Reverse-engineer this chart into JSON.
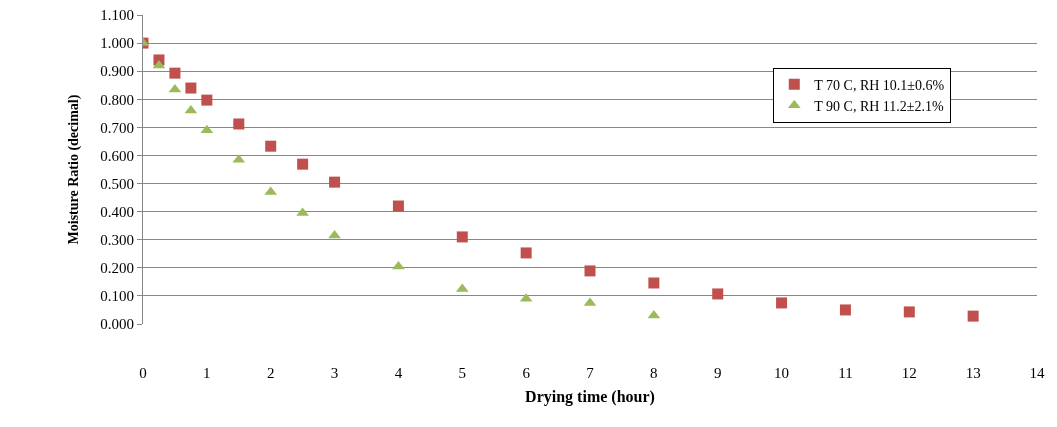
{
  "chart_data": {
    "type": "scatter",
    "xlabel": "Drying time (hour)",
    "ylabel": "Moisture Ratio (decimal)",
    "xlim": [
      0,
      14
    ],
    "xticks": [
      0,
      1,
      2,
      3,
      4,
      5,
      6,
      7,
      8,
      9,
      10,
      11,
      12,
      13,
      14
    ],
    "ylim": [
      0,
      1.1
    ],
    "yticks": [
      {
        "value": 0,
        "label": "0.000"
      },
      {
        "value": 0.1,
        "label": "0.100"
      },
      {
        "value": 0.2,
        "label": "0.200"
      },
      {
        "value": 0.3,
        "label": "0.300"
      },
      {
        "value": 0.4,
        "label": "0.400"
      },
      {
        "value": 0.5,
        "label": "0.500"
      },
      {
        "value": 0.6,
        "label": "0.600"
      },
      {
        "value": 0.7,
        "label": "0.700"
      },
      {
        "value": 0.8,
        "label": "0.800"
      },
      {
        "value": 0.9,
        "label": "0.900"
      },
      {
        "value": 1,
        "label": "1.000"
      },
      {
        "value": 1.1,
        "label": "1.100"
      }
    ],
    "grid": "y",
    "legend": "top right",
    "series": [
      {
        "name": "T 70 C, RH 10.1±0.6%",
        "color": "#c0504d",
        "marker": "square",
        "x": [
          0,
          0.25,
          0.5,
          0.75,
          1,
          1.5,
          2,
          2.5,
          3,
          4,
          5,
          6,
          7,
          8,
          9,
          10,
          11,
          12,
          13
        ],
        "values": [
          1.0,
          0.94,
          0.893,
          0.84,
          0.797,
          0.712,
          0.633,
          0.569,
          0.505,
          0.42,
          0.31,
          0.253,
          0.189,
          0.146,
          0.107,
          0.075,
          0.05,
          0.043,
          0.028
        ]
      },
      {
        "name": "T 90 C, RH 11.2±2.1%",
        "color": "#9bbb59",
        "marker": "triangle",
        "x": [
          0,
          0.25,
          0.5,
          0.75,
          1,
          1.5,
          2,
          2.5,
          3,
          4,
          5,
          6,
          7,
          8
        ],
        "values": [
          1.0,
          0.92,
          0.835,
          0.76,
          0.69,
          0.585,
          0.47,
          0.395,
          0.315,
          0.205,
          0.125,
          0.09,
          0.075,
          0.03
        ]
      }
    ]
  }
}
